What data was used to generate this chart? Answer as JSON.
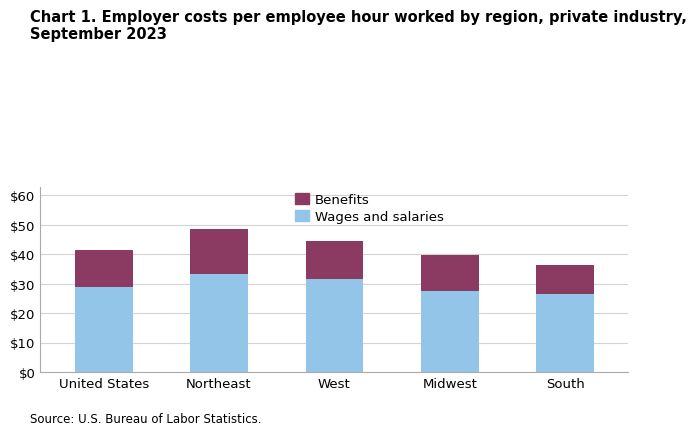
{
  "title_line1": "Chart 1. Employer costs per employee hour worked by region, private industry,",
  "title_line2": "September 2023",
  "categories": [
    "United States",
    "Northeast",
    "West",
    "Midwest",
    "South"
  ],
  "wages": [
    29.0,
    33.3,
    31.6,
    27.5,
    26.5
  ],
  "totals": [
    41.4,
    48.6,
    44.7,
    39.9,
    36.5
  ],
  "wages_color": "#92C5E8",
  "benefits_color": "#8B3A62",
  "ylabel_ticks": [
    0,
    10,
    20,
    30,
    40,
    50,
    60
  ],
  "ylabel_labels": [
    "$0",
    "$10",
    "$20",
    "$30",
    "$40",
    "$50",
    "$60"
  ],
  "legend_benefits": "Benefits",
  "legend_wages": "Wages and salaries",
  "source_text": "Source: U.S. Bureau of Labor Statistics.",
  "ylim": [
    0,
    63
  ],
  "bar_width": 0.5,
  "title_fontsize": 10.5,
  "tick_fontsize": 9.5,
  "legend_fontsize": 9.5,
  "source_fontsize": 8.5
}
